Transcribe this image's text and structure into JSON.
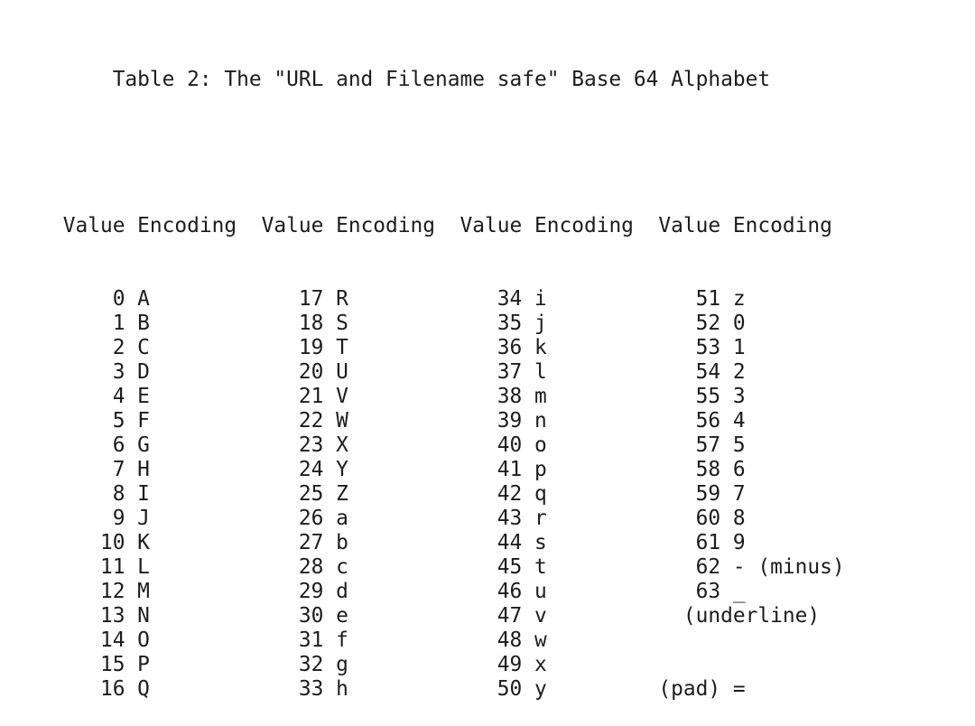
{
  "document": {
    "title": "Table 2: The \"URL and Filename safe\" Base 64 Alphabet",
    "table": {
      "header": {
        "value_label": "Value",
        "encoding_label": "Encoding",
        "repeat": 4
      },
      "rows": [
        {
          "cells": [
            {
              "value": "0",
              "encoding": "A"
            },
            {
              "value": "17",
              "encoding": "R"
            },
            {
              "value": "34",
              "encoding": "i"
            },
            {
              "value": "51",
              "encoding": "z"
            }
          ]
        },
        {
          "cells": [
            {
              "value": "1",
              "encoding": "B"
            },
            {
              "value": "18",
              "encoding": "S"
            },
            {
              "value": "35",
              "encoding": "j"
            },
            {
              "value": "52",
              "encoding": "0"
            }
          ]
        },
        {
          "cells": [
            {
              "value": "2",
              "encoding": "C"
            },
            {
              "value": "19",
              "encoding": "T"
            },
            {
              "value": "36",
              "encoding": "k"
            },
            {
              "value": "53",
              "encoding": "1"
            }
          ]
        },
        {
          "cells": [
            {
              "value": "3",
              "encoding": "D"
            },
            {
              "value": "20",
              "encoding": "U"
            },
            {
              "value": "37",
              "encoding": "l"
            },
            {
              "value": "54",
              "encoding": "2"
            }
          ]
        },
        {
          "cells": [
            {
              "value": "4",
              "encoding": "E"
            },
            {
              "value": "21",
              "encoding": "V"
            },
            {
              "value": "38",
              "encoding": "m"
            },
            {
              "value": "55",
              "encoding": "3"
            }
          ]
        },
        {
          "cells": [
            {
              "value": "5",
              "encoding": "F"
            },
            {
              "value": "22",
              "encoding": "W"
            },
            {
              "value": "39",
              "encoding": "n"
            },
            {
              "value": "56",
              "encoding": "4"
            }
          ]
        },
        {
          "cells": [
            {
              "value": "6",
              "encoding": "G"
            },
            {
              "value": "23",
              "encoding": "X"
            },
            {
              "value": "40",
              "encoding": "o"
            },
            {
              "value": "57",
              "encoding": "5"
            }
          ]
        },
        {
          "cells": [
            {
              "value": "7",
              "encoding": "H"
            },
            {
              "value": "24",
              "encoding": "Y"
            },
            {
              "value": "41",
              "encoding": "p"
            },
            {
              "value": "58",
              "encoding": "6"
            }
          ]
        },
        {
          "cells": [
            {
              "value": "8",
              "encoding": "I"
            },
            {
              "value": "25",
              "encoding": "Z"
            },
            {
              "value": "42",
              "encoding": "q"
            },
            {
              "value": "59",
              "encoding": "7"
            }
          ]
        },
        {
          "cells": [
            {
              "value": "9",
              "encoding": "J"
            },
            {
              "value": "26",
              "encoding": "a"
            },
            {
              "value": "43",
              "encoding": "r"
            },
            {
              "value": "60",
              "encoding": "8"
            }
          ]
        },
        {
          "cells": [
            {
              "value": "10",
              "encoding": "K"
            },
            {
              "value": "27",
              "encoding": "b"
            },
            {
              "value": "44",
              "encoding": "s"
            },
            {
              "value": "61",
              "encoding": "9"
            }
          ]
        },
        {
          "cells": [
            {
              "value": "11",
              "encoding": "L"
            },
            {
              "value": "28",
              "encoding": "c"
            },
            {
              "value": "45",
              "encoding": "t"
            },
            {
              "value": "62",
              "encoding": "- (minus)"
            }
          ]
        },
        {
          "cells": [
            {
              "value": "12",
              "encoding": "M"
            },
            {
              "value": "29",
              "encoding": "d"
            },
            {
              "value": "46",
              "encoding": "u"
            },
            {
              "value": "63",
              "encoding": "_"
            }
          ]
        },
        {
          "cells": [
            {
              "value": "13",
              "encoding": "N"
            },
            {
              "value": "30",
              "encoding": "e"
            },
            {
              "value": "47",
              "encoding": "v"
            }
          ],
          "note": {
            "text": "(underline)",
            "col": 55
          }
        },
        {
          "cells": [
            {
              "value": "14",
              "encoding": "O"
            },
            {
              "value": "31",
              "encoding": "f"
            },
            {
              "value": "48",
              "encoding": "w"
            }
          ]
        },
        {
          "cells": [
            {
              "value": "15",
              "encoding": "P"
            },
            {
              "value": "32",
              "encoding": "g"
            },
            {
              "value": "49",
              "encoding": "x"
            }
          ]
        },
        {
          "cells": [
            {
              "value": "16",
              "encoding": "Q"
            },
            {
              "value": "33",
              "encoding": "h"
            },
            {
              "value": "50",
              "encoding": "y"
            }
          ],
          "note": {
            "text": "(pad) =",
            "col": 53
          }
        }
      ]
    },
    "colors": {
      "text": "#1c1c1c",
      "background": "#ffffff"
    }
  }
}
